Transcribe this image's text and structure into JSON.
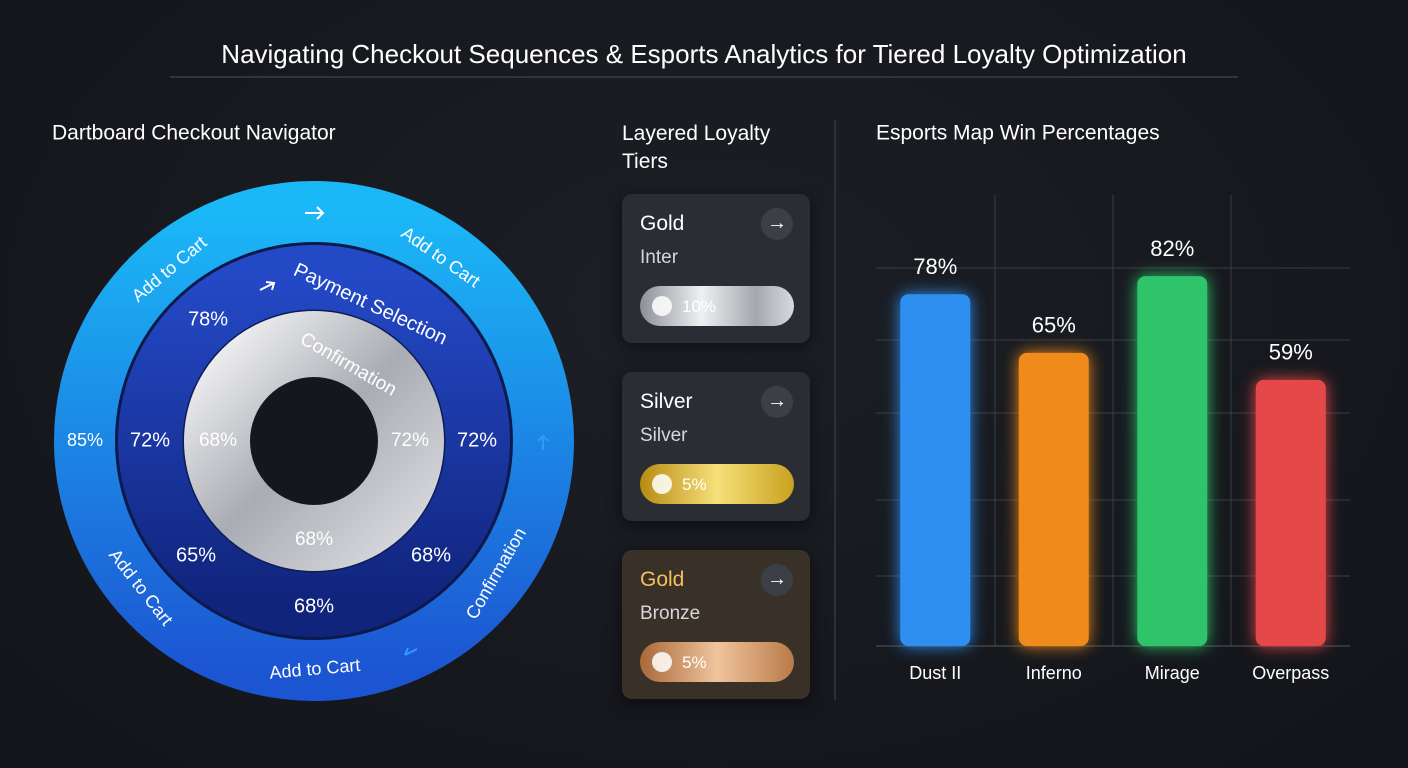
{
  "title": "Navigating Checkout Sequences & Esports Analytics for Tiered Loyalty Optimization",
  "dartboard": {
    "title": "Dartboard Checkout Navigator",
    "outer": [
      "Add to Cart",
      "Add to Cart",
      "Add to Cart",
      "Add to Cart",
      "Confirmation",
      "85%"
    ],
    "middle": [
      "Payment Selection",
      "78%",
      "72%",
      "72%",
      "65%",
      "68%",
      "68%"
    ],
    "inner": [
      "Confirmation",
      "68%",
      "72%",
      "68%"
    ]
  },
  "loyalty": {
    "title": "Layered Loyalty Tiers",
    "cards": [
      {
        "tier": "Gold",
        "name": "Inter",
        "badge": "10%"
      },
      {
        "tier": "Silver",
        "name": "Silver",
        "badge": "5%"
      },
      {
        "tier": "Gold",
        "name": "Bronze",
        "badge": "5%"
      }
    ]
  },
  "chart_data": {
    "type": "bar",
    "title": "Esports Map Win Percentages",
    "categories": [
      "Dust II",
      "Inferno",
      "Mirage",
      "Overpass"
    ],
    "values": [
      78,
      65,
      82,
      59
    ],
    "value_labels": [
      "78%",
      "65%",
      "82%",
      "59%"
    ],
    "colors": [
      "#2f8ff0",
      "#f08a1a",
      "#2fc46a",
      "#e54848"
    ],
    "ylim": [
      0,
      100
    ]
  }
}
